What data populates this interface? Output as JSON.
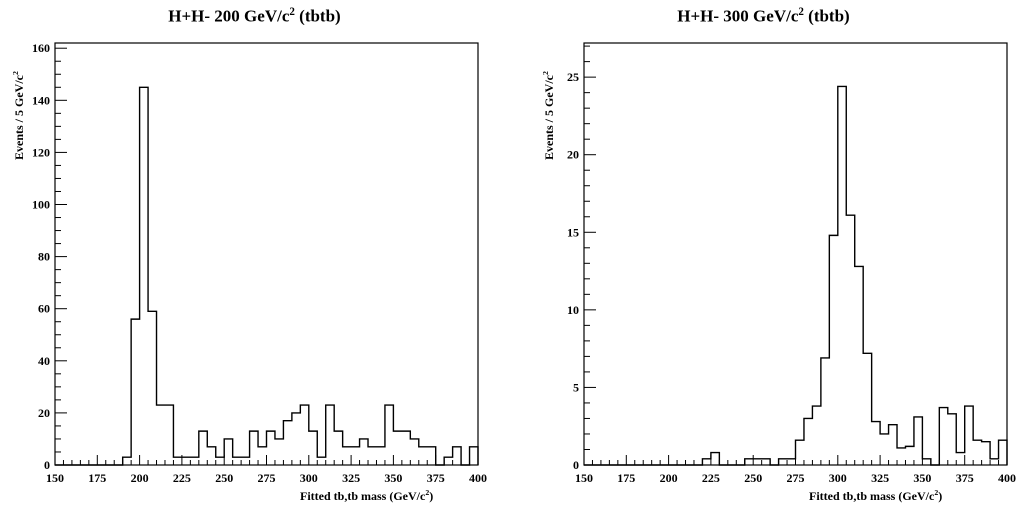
{
  "chart_data": [
    {
      "type": "bar",
      "title_main": "H+H- 200 GeV/c",
      "title_sup": "2",
      "title_tail": " (tbtb)",
      "xlabel_main": "Fitted tb,tb mass (GeV/c",
      "xlabel_sup": "2",
      "xlabel_tail": ")",
      "ylabel_main": "Events / 5 GeV/c",
      "ylabel_sup": "2",
      "xlim": [
        150,
        400
      ],
      "ylim": [
        0,
        162
      ],
      "bin_width": 5,
      "x_ticks": [
        150,
        175,
        200,
        225,
        250,
        275,
        300,
        325,
        350,
        375,
        400
      ],
      "y_ticks": [
        0,
        20,
        40,
        60,
        80,
        100,
        120,
        140,
        160
      ],
      "y_minor_step": 5,
      "grid": false,
      "bins_x": [
        150,
        155,
        160,
        165,
        170,
        175,
        180,
        185,
        190,
        195,
        200,
        205,
        210,
        215,
        220,
        225,
        230,
        235,
        240,
        245,
        250,
        255,
        260,
        265,
        270,
        275,
        280,
        285,
        290,
        295,
        300,
        305,
        310,
        315,
        320,
        325,
        330,
        335,
        340,
        345,
        350,
        355,
        360,
        365,
        370,
        375,
        380,
        385,
        390,
        395
      ],
      "values": [
        0,
        0,
        0,
        0,
        0,
        0,
        0,
        0,
        3,
        56,
        145,
        59,
        23,
        23,
        3,
        3,
        3,
        13,
        7,
        3,
        10,
        3,
        3,
        13,
        7,
        13,
        10,
        17,
        20,
        23,
        13,
        3,
        23,
        13,
        7,
        7,
        10,
        7,
        7,
        23,
        13,
        13,
        10,
        7,
        7,
        0,
        3,
        7,
        0,
        7
      ]
    },
    {
      "type": "bar",
      "title_main": "H+H- 300 GeV/c",
      "title_sup": "2",
      "title_tail": " (tbtb)",
      "xlabel_main": "Fitted tb,tb mass (GeV/c",
      "xlabel_sup": "2",
      "xlabel_tail": ")",
      "ylabel_main": "Events / 5 GeV/c",
      "ylabel_sup": "2",
      "xlim": [
        150,
        400
      ],
      "ylim": [
        0,
        27.2
      ],
      "bin_width": 5,
      "x_ticks": [
        150,
        175,
        200,
        225,
        250,
        275,
        300,
        325,
        350,
        375,
        400
      ],
      "y_ticks": [
        0,
        5,
        10,
        15,
        20,
        25
      ],
      "y_minor_step": 1,
      "grid": false,
      "bins_x": [
        150,
        155,
        160,
        165,
        170,
        175,
        180,
        185,
        190,
        195,
        200,
        205,
        210,
        215,
        220,
        225,
        230,
        235,
        240,
        245,
        250,
        255,
        260,
        265,
        270,
        275,
        280,
        285,
        290,
        295,
        300,
        305,
        310,
        315,
        320,
        325,
        330,
        335,
        340,
        345,
        350,
        355,
        360,
        365,
        370,
        375,
        380,
        385,
        390,
        395
      ],
      "values": [
        0,
        0,
        0,
        0,
        0,
        0,
        0,
        0,
        0,
        0,
        0,
        0,
        0,
        0,
        0.4,
        0.8,
        0,
        0,
        0,
        0.4,
        0.4,
        0.4,
        0,
        0.4,
        0.4,
        1.6,
        3.0,
        3.8,
        6.9,
        14.8,
        24.4,
        16.1,
        12.8,
        7.2,
        2.8,
        2.0,
        2.6,
        1.1,
        1.2,
        3.1,
        0.4,
        0,
        3.7,
        3.3,
        0.8,
        3.8,
        1.6,
        1.5,
        0.4,
        1.6
      ]
    }
  ]
}
